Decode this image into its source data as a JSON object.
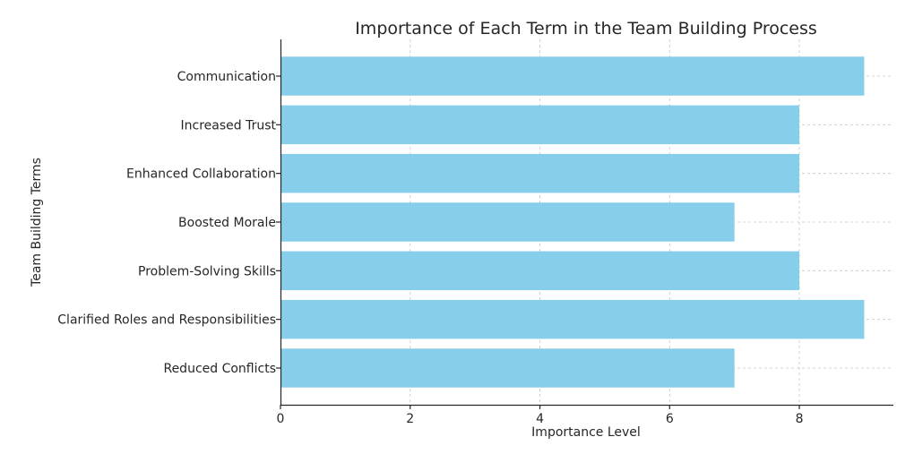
{
  "chart_data": {
    "type": "bar",
    "orientation": "horizontal",
    "title": "Importance of Each Term in the Team Building Process",
    "xlabel": "Importance Level",
    "ylabel": "Team Building Terms",
    "categories": [
      "Communication",
      "Increased Trust",
      "Enhanced Collaboration",
      "Boosted Morale",
      "Problem-Solving Skills",
      "Clarified Roles and Responsibilities",
      "Reduced Conflicts"
    ],
    "values": [
      9,
      8,
      8,
      7,
      8,
      9,
      7
    ],
    "xlim": [
      0,
      9.45
    ],
    "xticks": [
      0,
      2,
      4,
      6,
      8
    ],
    "grid": true,
    "bar_color": "#87CEEB"
  }
}
